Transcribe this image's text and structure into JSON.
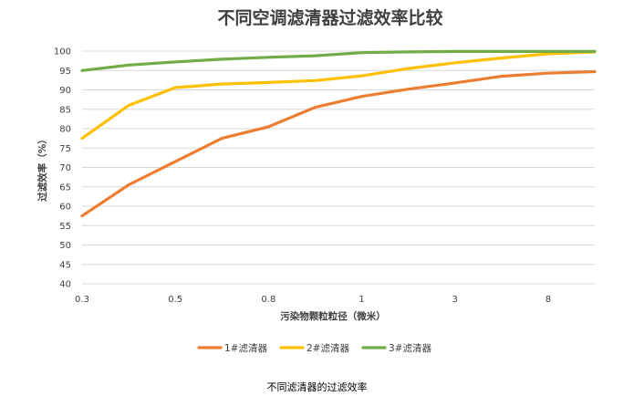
{
  "chart_data": {
    "type": "line",
    "title": "不同空调滤清器过滤效率比较",
    "xlabel": "污染物颗粒粒径（微米）",
    "ylabel": "过滤效率（%）",
    "x_tick_labels": [
      "0.3",
      "0.5",
      "0.8",
      "1",
      "3",
      "8"
    ],
    "y_ticks": [
      40,
      45,
      50,
      55,
      60,
      65,
      70,
      75,
      80,
      85,
      90,
      95,
      100
    ],
    "ylim": [
      40,
      100
    ],
    "grid": "horizontal",
    "legend_position": "bottom",
    "series": [
      {
        "name": "1#滤清器",
        "color": "#ED7D31",
        "values": [
          57.5,
          65.5,
          71.5,
          77.5,
          80.5,
          85.5,
          88.3,
          90.2,
          91.8,
          93.5,
          94.3,
          94.7
        ]
      },
      {
        "name": "2#滤清器",
        "color": "#FFC000",
        "values": [
          77.5,
          86.0,
          90.6,
          91.5,
          91.9,
          92.4,
          93.6,
          95.5,
          97.0,
          98.2,
          99.3,
          99.8
        ]
      },
      {
        "name": "3#滤清器",
        "color": "#70AD47",
        "values": [
          95.0,
          96.4,
          97.2,
          97.9,
          98.4,
          98.8,
          99.6,
          99.8,
          99.9,
          99.9,
          99.9,
          99.9
        ]
      }
    ]
  },
  "caption": "不同滤清器的过滤效率",
  "colors": {
    "grid": "#d9d9d9",
    "text": "#404040",
    "background": "#ffffff"
  }
}
